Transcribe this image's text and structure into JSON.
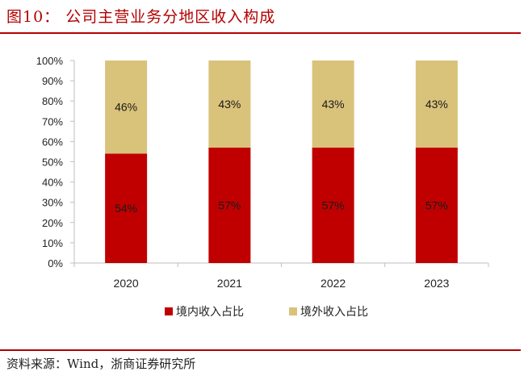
{
  "figure": {
    "title": "图10：  公司主营业务分地区收入构成",
    "source": "资料来源：Wind，浙商证券研究所"
  },
  "colors": {
    "domestic": "#c00000",
    "overseas": "#d9c27a",
    "accent": "#b30000"
  },
  "chart_data": {
    "type": "bar",
    "stacked": true,
    "title": "公司主营业务分地区收入构成",
    "categories": [
      "2020",
      "2021",
      "2022",
      "2023"
    ],
    "series": [
      {
        "name": "境内收入占比",
        "values": [
          54,
          57,
          57,
          57
        ],
        "labels": [
          "54%",
          "57%",
          "57%",
          "57%"
        ]
      },
      {
        "name": "境外收入占比",
        "values": [
          46,
          43,
          43,
          43
        ],
        "labels": [
          "46%",
          "43%",
          "43%",
          "43%"
        ]
      }
    ],
    "yticks": [
      "0%",
      "10%",
      "20%",
      "30%",
      "40%",
      "50%",
      "60%",
      "70%",
      "80%",
      "90%",
      "100%"
    ],
    "ylim": [
      0,
      100
    ],
    "xlabel": "",
    "ylabel": "",
    "legend_position": "bottom"
  }
}
